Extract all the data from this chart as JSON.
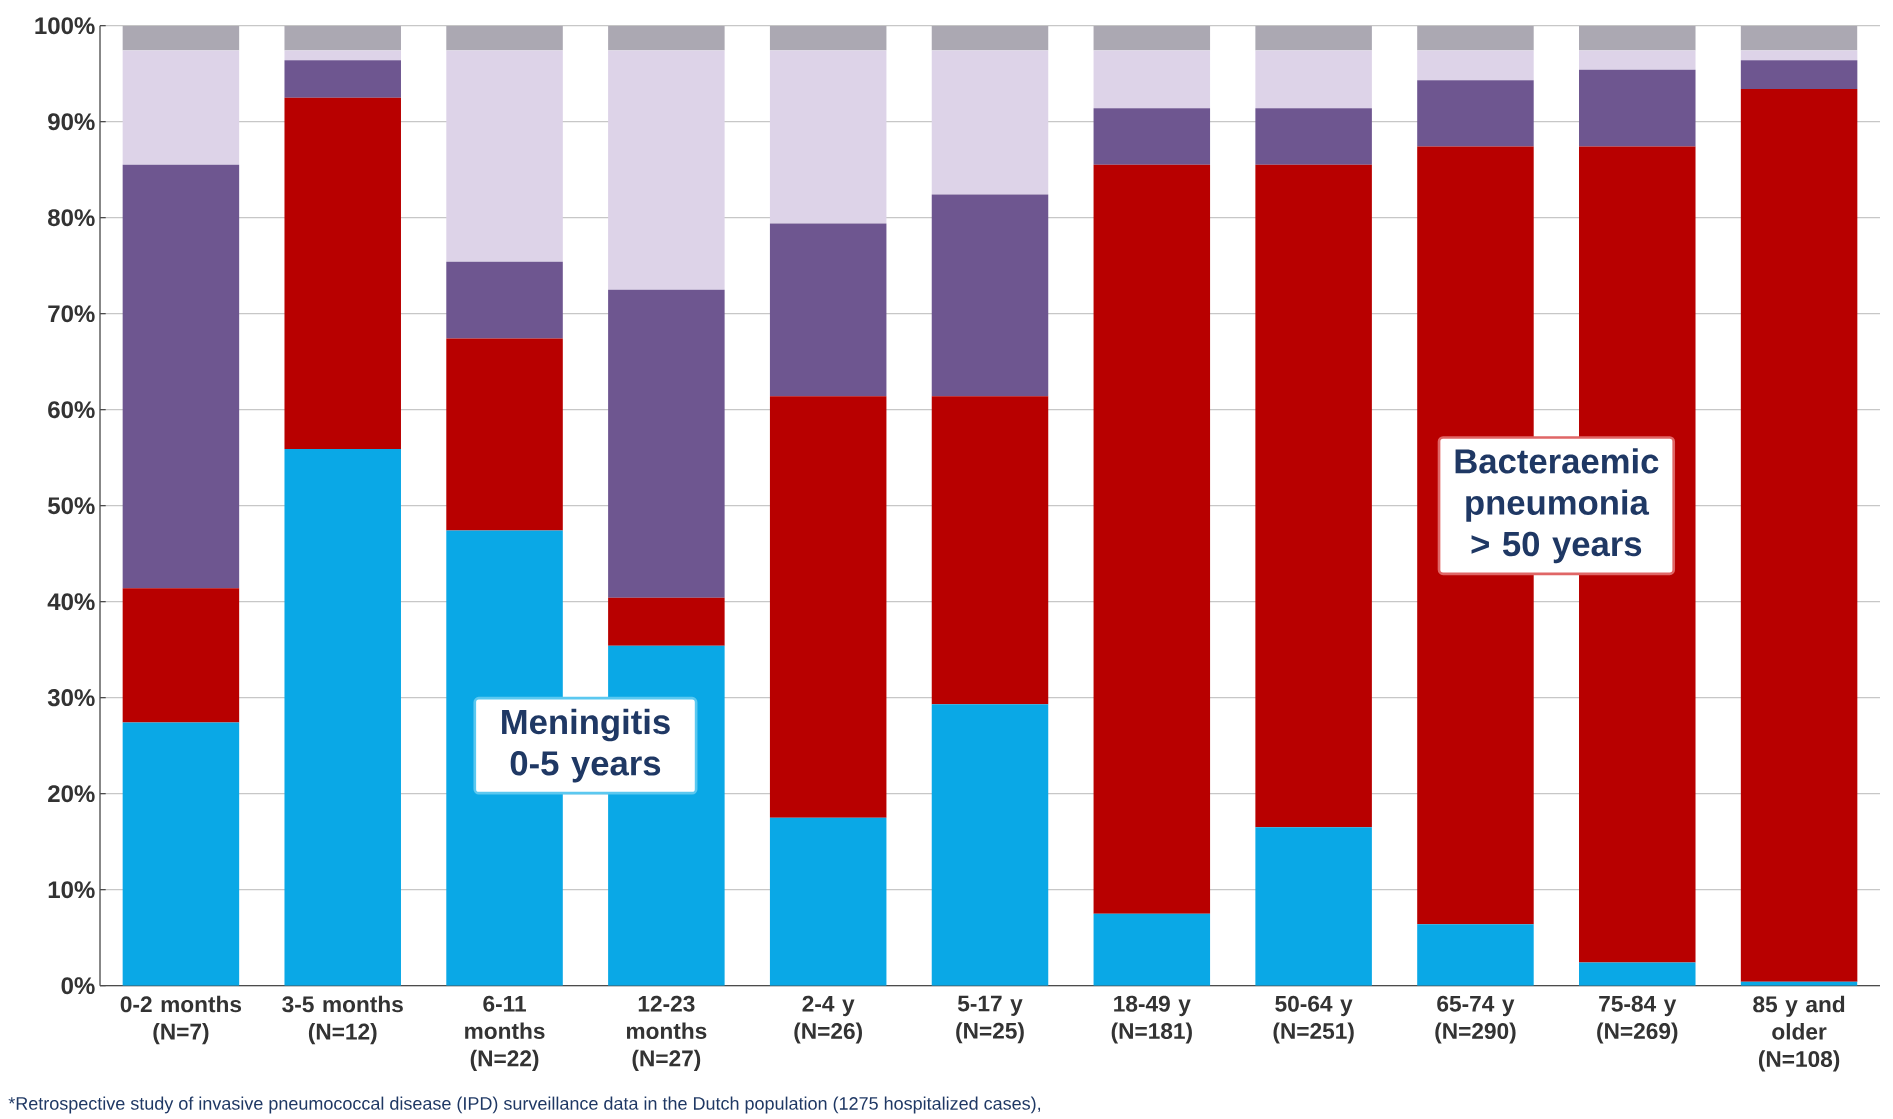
{
  "chart_data": {
    "type": "bar",
    "stacked": true,
    "categories": [
      "0-2 months (N=7)",
      "3-5 months (N=12)",
      "6-11 months (N=22)",
      "12-23 months (N=27)",
      "2-4 y (N=26)",
      "5-17 y (N=25)",
      "18-49 y (N=181)",
      "50-64 y (N=251)",
      "65-74 y (N=290)",
      "75-84 y (N=269)",
      "85 y and older (N=108)"
    ],
    "series": [
      {
        "color": "#0aa8e6",
        "values": [
          27.4,
          55.9,
          47.4,
          35.4,
          17.5,
          29.3,
          7.5,
          16.5,
          6.4,
          2.4,
          0.4
        ]
      },
      {
        "color": "#b80000",
        "values": [
          14.0,
          36.6,
          20.0,
          5.0,
          43.9,
          32.1,
          78.0,
          69.0,
          81.0,
          85.0,
          93.0
        ]
      },
      {
        "color": "#6e5690",
        "values": [
          44.1,
          3.9,
          8.0,
          32.1,
          18.0,
          21.0,
          5.9,
          5.9,
          6.9,
          8.0,
          3.0
        ]
      },
      {
        "color": "#ddd3e8",
        "values": [
          11.9,
          1.0,
          22.0,
          24.9,
          18.0,
          15.0,
          6.0,
          6.0,
          3.1,
          2.0,
          1.0
        ]
      },
      {
        "color": "#aba8b2",
        "values": [
          2.6,
          2.6,
          2.6,
          2.6,
          2.6,
          2.6,
          2.6,
          2.6,
          2.6,
          2.6,
          2.6
        ]
      }
    ],
    "ylim": [
      0,
      100
    ],
    "yticks": [
      {
        "value": 0,
        "label": "0%"
      },
      {
        "value": 10,
        "label": "10%"
      },
      {
        "value": 20,
        "label": "20%"
      },
      {
        "value": 30,
        "label": "30%"
      },
      {
        "value": 40,
        "label": "40%"
      },
      {
        "value": 50,
        "label": "50%"
      },
      {
        "value": 60,
        "label": "60%"
      },
      {
        "value": 70,
        "label": "70%"
      },
      {
        "value": 80,
        "label": "80%"
      },
      {
        "value": 90,
        "label": "90%"
      },
      {
        "value": 100,
        "label": "100%"
      }
    ],
    "grid": "y",
    "annotations": [
      "Meningitis 0-5 years",
      "Bacteraemic pneumonia > 50 years",
      "*Retrospective study of invasive pneumococcal disease (IPD) surveillance data in the Dutch population (1275 hospitalized cases),"
    ]
  }
}
